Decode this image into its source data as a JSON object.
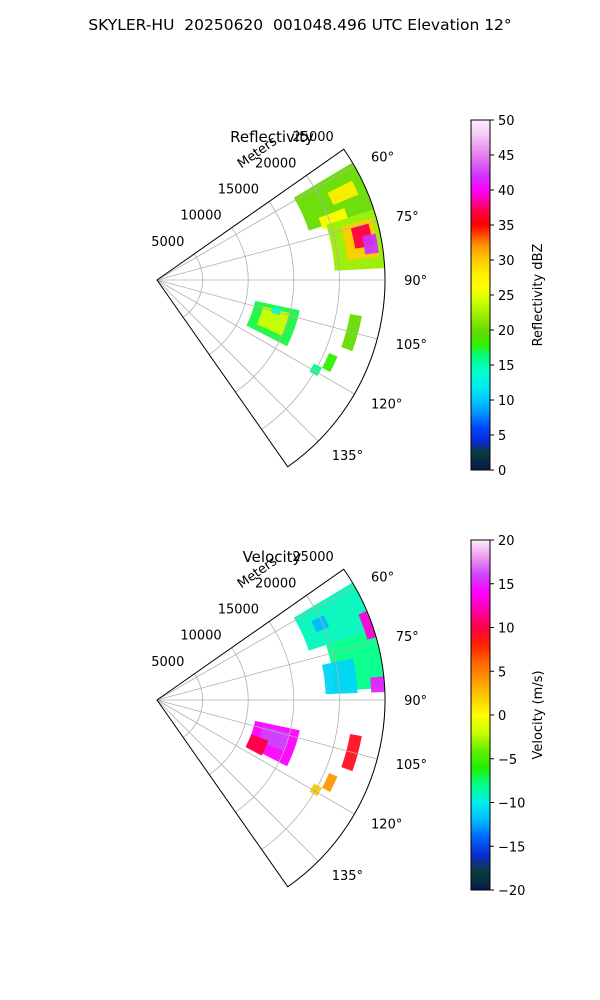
{
  "figure": {
    "title": "SKYLER-HU  20250620  001048.496 UTC Elevation 12°"
  },
  "chart_data": [
    {
      "type": "heatmap",
      "subtype": "polar-sector-radar",
      "title": "Reflectivity",
      "radial_label": "Meters",
      "range_ticks": [
        5000,
        10000,
        15000,
        20000,
        25000
      ],
      "range_tick_labels": [
        "5000",
        "10000",
        "15000",
        "20000",
        "25000"
      ],
      "max_range_m": 25000,
      "azimuth_limits_deg": [
        55,
        145
      ],
      "azimuth_ticks": [
        60,
        75,
        90,
        105,
        120,
        135
      ],
      "azimuth_tick_labels": [
        "60°",
        "75°",
        "90°",
        "105°",
        "120°",
        "135°"
      ],
      "grid": true,
      "colorbar": {
        "label": "Reflectivity dBZ",
        "range": [
          0,
          50
        ],
        "ticks": [
          0,
          5,
          10,
          15,
          20,
          25,
          30,
          35,
          40,
          45,
          50
        ],
        "tick_labels": [
          "0",
          "5",
          "10",
          "15",
          "20",
          "25",
          "30",
          "35",
          "40",
          "45",
          "50"
        ],
        "colormap": [
          [
            0,
            "#061a4a"
          ],
          [
            2.5,
            "#0b3b3b"
          ],
          [
            4,
            "#0a2bd0"
          ],
          [
            6,
            "#0044ff"
          ],
          [
            8,
            "#0090ff"
          ],
          [
            10,
            "#00c8ff"
          ],
          [
            12,
            "#00eeee"
          ],
          [
            14,
            "#00ffcc"
          ],
          [
            16,
            "#00ff88"
          ],
          [
            18,
            "#33ee00"
          ],
          [
            20,
            "#66dd00"
          ],
          [
            22,
            "#99ee00"
          ],
          [
            24,
            "#ccff00"
          ],
          [
            26,
            "#ffff00"
          ],
          [
            28,
            "#ffee00"
          ],
          [
            30,
            "#ffcc00"
          ],
          [
            32,
            "#ff9900"
          ],
          [
            33,
            "#ff6600"
          ],
          [
            35,
            "#ff0000"
          ],
          [
            37,
            "#ff0044"
          ],
          [
            38,
            "#ff0088"
          ],
          [
            40,
            "#ff00ff"
          ],
          [
            42,
            "#cc33ff"
          ],
          [
            44,
            "#dd66ee"
          ],
          [
            46,
            "#ee99ee"
          ],
          [
            48,
            "#f5ccf5"
          ],
          [
            50,
            "#ffeeff"
          ]
        ]
      },
      "echoes": [
        {
          "az": [
            59,
            72
          ],
          "r": [
            17500,
            25000
          ],
          "value": 20
        },
        {
          "az": [
            63,
            67
          ],
          "r": [
            21000,
            24000
          ],
          "value": 28
        },
        {
          "az": [
            69,
            73
          ],
          "r": [
            19000,
            22000
          ],
          "value": 26
        },
        {
          "az": [
            72,
            87
          ],
          "r": [
            19500,
            26000
          ],
          "value": 22
        },
        {
          "az": [
            74,
            84
          ],
          "r": [
            21000,
            24500
          ],
          "value": 30
        },
        {
          "az": [
            75,
            81
          ],
          "r": [
            22000,
            24000
          ],
          "value": 37
        },
        {
          "az": [
            78,
            83
          ],
          "r": [
            23000,
            24500
          ],
          "value": 42
        },
        {
          "az": [
            102,
            117
          ],
          "r": [
            11000,
            16000
          ],
          "value": 17
        },
        {
          "az": [
            104,
            114
          ],
          "r": [
            12000,
            15000
          ],
          "value": 24
        },
        {
          "az": [
            103,
            106
          ],
          "r": [
            13000,
            14000
          ],
          "value": 14
        },
        {
          "az": [
            100,
            110
          ],
          "r": [
            21500,
            22800
          ],
          "value": 20
        },
        {
          "az": [
            113,
            118
          ],
          "r": [
            20500,
            21500
          ],
          "value": 18
        },
        {
          "az": [
            118,
            121
          ],
          "r": [
            19500,
            20500
          ],
          "value": 16
        }
      ]
    },
    {
      "type": "heatmap",
      "subtype": "polar-sector-radar",
      "title": "Velocity",
      "radial_label": "Meters",
      "range_ticks": [
        5000,
        10000,
        15000,
        20000,
        25000
      ],
      "range_tick_labels": [
        "5000",
        "10000",
        "15000",
        "20000",
        "25000"
      ],
      "max_range_m": 25000,
      "azimuth_limits_deg": [
        55,
        145
      ],
      "azimuth_ticks": [
        60,
        75,
        90,
        105,
        120,
        135
      ],
      "azimuth_tick_labels": [
        "60°",
        "75°",
        "90°",
        "105°",
        "120°",
        "135°"
      ],
      "grid": true,
      "colorbar": {
        "label": "Velocity (m/s)",
        "range": [
          -20,
          20
        ],
        "ticks": [
          -20,
          -15,
          -10,
          -5,
          0,
          5,
          10,
          15,
          20
        ],
        "tick_labels": [
          "−20",
          "−15",
          "−10",
          "−5",
          "0",
          "5",
          "10",
          "15",
          "20"
        ],
        "colormap": [
          [
            -20,
            "#061a4a"
          ],
          [
            -18,
            "#0b3b3b"
          ],
          [
            -16,
            "#0a2bd0"
          ],
          [
            -14,
            "#0066ff"
          ],
          [
            -12,
            "#00bbff"
          ],
          [
            -10,
            "#00eeee"
          ],
          [
            -8,
            "#00ff88"
          ],
          [
            -6,
            "#22ee00"
          ],
          [
            -4,
            "#66ee00"
          ],
          [
            -2,
            "#ccff00"
          ],
          [
            0,
            "#ffff00"
          ],
          [
            2,
            "#ffcc00"
          ],
          [
            4,
            "#ff9900"
          ],
          [
            6,
            "#ff6600"
          ],
          [
            8,
            "#ff2200"
          ],
          [
            10,
            "#ff0044"
          ],
          [
            12,
            "#ff00aa"
          ],
          [
            14,
            "#ff00ff"
          ],
          [
            16,
            "#cc44ff"
          ],
          [
            18,
            "#ee99ee"
          ],
          [
            20,
            "#ffeeff"
          ]
        ]
      },
      "echoes": [
        {
          "az": [
            59,
            72
          ],
          "r": [
            17500,
            25000
          ],
          "value": -9
        },
        {
          "az": [
            72,
            87
          ],
          "r": [
            19500,
            26000
          ],
          "value": -8
        },
        {
          "az": [
            78,
            88
          ],
          "r": [
            18500,
            22000
          ],
          "value": -11
        },
        {
          "az": [
            67,
            74
          ],
          "r": [
            24000,
            26000
          ],
          "value": 13
        },
        {
          "az": [
            84,
            88
          ],
          "r": [
            23500,
            25500
          ],
          "value": 15
        },
        {
          "az": [
            63,
            67
          ],
          "r": [
            19000,
            20500
          ],
          "value": -12
        },
        {
          "az": [
            102,
            117
          ],
          "r": [
            11000,
            16000
          ],
          "value": 14
        },
        {
          "az": [
            104,
            112
          ],
          "r": [
            12000,
            15000
          ],
          "value": 16
        },
        {
          "az": [
            110,
            118
          ],
          "r": [
            11000,
            13000
          ],
          "value": 10
        },
        {
          "az": [
            100,
            110
          ],
          "r": [
            21500,
            22800
          ],
          "value": 9
        },
        {
          "az": [
            113,
            118
          ],
          "r": [
            20500,
            21500
          ],
          "value": 4
        },
        {
          "az": [
            118,
            121
          ],
          "r": [
            19500,
            20500
          ],
          "value": 2
        }
      ]
    }
  ]
}
